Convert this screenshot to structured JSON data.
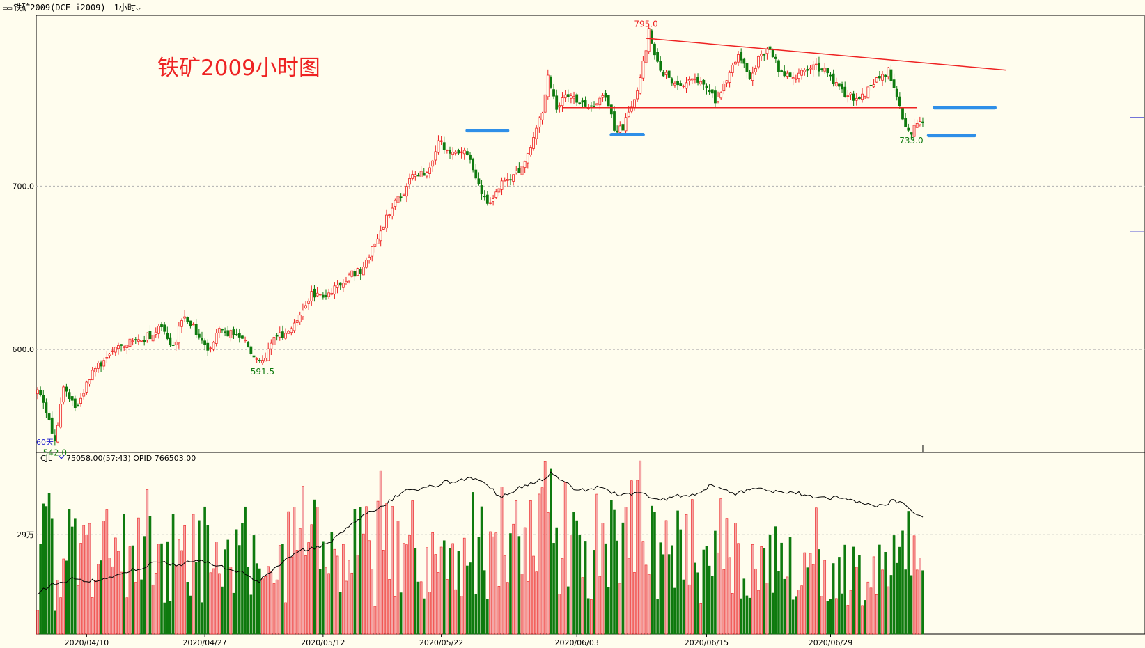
{
  "window": {
    "title": "铁矿2009(DCE i2009)",
    "period": "1小时",
    "icon": "chart-window-icon"
  },
  "annotation_title": "铁矿2009小时图",
  "indicator": {
    "name": "CJL",
    "reading": "75058.00(57:43)  OPID 766503.00"
  },
  "ma_tag": "60天",
  "colors": {
    "up": "#ee2222",
    "down": "#0e7a0e",
    "up_fill": "#fffdee",
    "annotation": "#ee2222",
    "blue": "#2f8fe8",
    "grid": "#b0b0b0",
    "background": "#fffdee"
  },
  "chart_data": [
    {
      "type": "candlestick",
      "title": "",
      "y_ticks": [
        600.0,
        700.0
      ],
      "y_tick_labels": [
        "600.0",
        "700.0"
      ],
      "ylim": [
        537,
        802
      ],
      "grid": "horizontal dashed",
      "x_labels": [
        "2020/04/10",
        "2020/04/27",
        "2020/05/12",
        "2020/05/22",
        "2020/06/03",
        "2020/06/15",
        "2020/06/29"
      ],
      "x_label_bars": [
        17,
        58,
        99,
        140,
        187,
        232,
        275
      ],
      "peak_path": [
        [
          0,
          577
        ],
        [
          3,
          560
        ],
        [
          6,
          546
        ],
        [
          9,
          575
        ],
        [
          13,
          564
        ],
        [
          18,
          583
        ],
        [
          24,
          596
        ],
        [
          30,
          603
        ],
        [
          37,
          607
        ],
        [
          43,
          613
        ],
        [
          47,
          602
        ],
        [
          51,
          622
        ],
        [
          55,
          610
        ],
        [
          59,
          598
        ],
        [
          63,
          612
        ],
        [
          68,
          609
        ],
        [
          72,
          604
        ],
        [
          75,
          597
        ],
        [
          78,
          593
        ],
        [
          82,
          606
        ],
        [
          86,
          610
        ],
        [
          91,
          622
        ],
        [
          95,
          635
        ],
        [
          100,
          630
        ],
        [
          104,
          640
        ],
        [
          108,
          645
        ],
        [
          113,
          649
        ],
        [
          117,
          665
        ],
        [
          121,
          681
        ],
        [
          126,
          694
        ],
        [
          130,
          707
        ],
        [
          135,
          707
        ],
        [
          139,
          728
        ],
        [
          143,
          720
        ],
        [
          148,
          722
        ],
        [
          152,
          707
        ],
        [
          156,
          688
        ],
        [
          160,
          699
        ],
        [
          164,
          706
        ],
        [
          168,
          710
        ],
        [
          172,
          728
        ],
        [
          175,
          747
        ],
        [
          177,
          768
        ],
        [
          180,
          748
        ],
        [
          183,
          757
        ],
        [
          188,
          752
        ],
        [
          193,
          748
        ],
        [
          197,
          755
        ],
        [
          200,
          735
        ],
        [
          203,
          736
        ],
        [
          207,
          753
        ],
        [
          210,
          775
        ],
        [
          212,
          795
        ],
        [
          215,
          774
        ],
        [
          219,
          766
        ],
        [
          223,
          760
        ],
        [
          227,
          768
        ],
        [
          231,
          763
        ],
        [
          235,
          752
        ],
        [
          239,
          767
        ],
        [
          243,
          781
        ],
        [
          247,
          768
        ],
        [
          251,
          780
        ],
        [
          254,
          783
        ],
        [
          258,
          768
        ],
        [
          262,
          766
        ],
        [
          266,
          771
        ],
        [
          270,
          773
        ],
        [
          274,
          770
        ],
        [
          279,
          758
        ],
        [
          283,
          754
        ],
        [
          287,
          757
        ],
        [
          291,
          764
        ],
        [
          295,
          770
        ],
        [
          297,
          762
        ],
        [
          299,
          748
        ],
        [
          301,
          737
        ],
        [
          303,
          733
        ],
        [
          305,
          737
        ],
        [
          307,
          739
        ]
      ],
      "annotations": [
        {
          "label": "795.0",
          "bar": 211,
          "price": 795,
          "position": "above",
          "color": "up"
        },
        {
          "label": "591.5",
          "bar": 78,
          "price": 591.5,
          "position": "below",
          "color": "down"
        },
        {
          "label": "542.0",
          "bar": 6,
          "price": 542,
          "position": "below",
          "color": "down"
        },
        {
          "label": "733.0",
          "bar": 303,
          "price": 733,
          "position": "below",
          "color": "down"
        }
      ],
      "lines": [
        {
          "from": [
            211,
            790.5
          ],
          "to": [
            336,
            771
          ],
          "color": "up"
        },
        {
          "from": [
            182,
            748
          ],
          "to": [
            305,
            748
          ],
          "color": "up"
        }
      ],
      "markers": [
        {
          "from": [
            149,
            734
          ],
          "to": [
            163,
            734
          ]
        },
        {
          "from": [
            199,
            731.5
          ],
          "to": [
            210,
            731.5
          ]
        },
        {
          "from": [
            309,
            731
          ],
          "to": [
            325,
            731
          ]
        },
        {
          "from": [
            311,
            748
          ],
          "to": [
            332,
            748
          ]
        }
      ],
      "right_ticks": [
        742,
        672
      ]
    },
    {
      "type": "bar+line",
      "title": "",
      "series": [
        {
          "name": "CJL",
          "kind": "bar"
        },
        {
          "name": "OPID",
          "kind": "line"
        }
      ],
      "y_ticks": [
        290000
      ],
      "y_tick_labels": [
        "29万"
      ],
      "ylim": [
        0,
        520000
      ],
      "vol_path": [
        [
          0,
          110000
        ],
        [
          3,
          360000
        ],
        [
          6,
          190000
        ],
        [
          9,
          320000
        ],
        [
          13,
          220000
        ],
        [
          18,
          300000
        ],
        [
          24,
          270000
        ],
        [
          30,
          240000
        ],
        [
          37,
          320000
        ],
        [
          43,
          210000
        ],
        [
          47,
          260000
        ],
        [
          51,
          230000
        ],
        [
          55,
          320000
        ],
        [
          59,
          200000
        ],
        [
          63,
          240000
        ],
        [
          68,
          240000
        ],
        [
          72,
          250000
        ],
        [
          75,
          320000
        ],
        [
          78,
          200000
        ],
        [
          82,
          230000
        ],
        [
          86,
          250000
        ],
        [
          91,
          280000
        ],
        [
          95,
          300000
        ],
        [
          100,
          240000
        ],
        [
          104,
          300000
        ],
        [
          108,
          250000
        ],
        [
          113,
          280000
        ],
        [
          117,
          230000
        ],
        [
          121,
          300000
        ],
        [
          126,
          250000
        ],
        [
          130,
          290000
        ],
        [
          135,
          270000
        ],
        [
          139,
          320000
        ],
        [
          143,
          300000
        ],
        [
          148,
          290000
        ],
        [
          152,
          270000
        ],
        [
          156,
          290000
        ],
        [
          160,
          240000
        ],
        [
          164,
          290000
        ],
        [
          168,
          300000
        ],
        [
          172,
          280000
        ],
        [
          175,
          330000
        ],
        [
          177,
          440000
        ],
        [
          180,
          300000
        ],
        [
          183,
          280000
        ],
        [
          188,
          280000
        ],
        [
          193,
          280000
        ],
        [
          197,
          320000
        ],
        [
          200,
          280000
        ],
        [
          203,
          250000
        ],
        [
          207,
          320000
        ],
        [
          210,
          420000
        ],
        [
          212,
          370000
        ],
        [
          215,
          240000
        ],
        [
          219,
          240000
        ],
        [
          223,
          270000
        ],
        [
          227,
          260000
        ],
        [
          231,
          250000
        ],
        [
          235,
          220000
        ],
        [
          239,
          260000
        ],
        [
          243,
          270000
        ],
        [
          247,
          250000
        ],
        [
          251,
          250000
        ],
        [
          254,
          230000
        ],
        [
          258,
          220000
        ],
        [
          262,
          230000
        ],
        [
          266,
          230000
        ],
        [
          270,
          210000
        ],
        [
          274,
          210000
        ],
        [
          279,
          200000
        ],
        [
          283,
          200000
        ],
        [
          287,
          210000
        ],
        [
          291,
          200000
        ],
        [
          295,
          200000
        ],
        [
          297,
          230000
        ],
        [
          299,
          370000
        ],
        [
          301,
          320000
        ],
        [
          303,
          260000
        ],
        [
          305,
          200000
        ],
        [
          307,
          180000
        ]
      ],
      "oi_path": [
        [
          0,
          120000
        ],
        [
          6,
          150000
        ],
        [
          12,
          160000
        ],
        [
          18,
          155000
        ],
        [
          24,
          165000
        ],
        [
          30,
          180000
        ],
        [
          36,
          195000
        ],
        [
          42,
          210000
        ],
        [
          48,
          200000
        ],
        [
          54,
          215000
        ],
        [
          60,
          205000
        ],
        [
          66,
          190000
        ],
        [
          72,
          180000
        ],
        [
          76,
          150000
        ],
        [
          80,
          175000
        ],
        [
          84,
          200000
        ],
        [
          88,
          230000
        ],
        [
          92,
          245000
        ],
        [
          96,
          250000
        ],
        [
          100,
          260000
        ],
        [
          104,
          285000
        ],
        [
          110,
          330000
        ],
        [
          116,
          360000
        ],
        [
          120,
          375000
        ],
        [
          124,
          400000
        ],
        [
          128,
          425000
        ],
        [
          132,
          420000
        ],
        [
          136,
          430000
        ],
        [
          140,
          440000
        ],
        [
          146,
          450000
        ],
        [
          150,
          455000
        ],
        [
          154,
          445000
        ],
        [
          158,
          420000
        ],
        [
          160,
          400000
        ],
        [
          164,
          410000
        ],
        [
          168,
          430000
        ],
        [
          172,
          440000
        ],
        [
          176,
          455000
        ],
        [
          178,
          470000
        ],
        [
          182,
          450000
        ],
        [
          186,
          425000
        ],
        [
          190,
          420000
        ],
        [
          194,
          430000
        ],
        [
          198,
          415000
        ],
        [
          202,
          405000
        ],
        [
          206,
          410000
        ],
        [
          210,
          410000
        ],
        [
          214,
          395000
        ],
        [
          218,
          395000
        ],
        [
          222,
          405000
        ],
        [
          226,
          400000
        ],
        [
          230,
          415000
        ],
        [
          234,
          440000
        ],
        [
          238,
          420000
        ],
        [
          242,
          410000
        ],
        [
          246,
          420000
        ],
        [
          250,
          430000
        ],
        [
          254,
          420000
        ],
        [
          258,
          410000
        ],
        [
          262,
          415000
        ],
        [
          266,
          405000
        ],
        [
          270,
          400000
        ],
        [
          274,
          395000
        ],
        [
          278,
          400000
        ],
        [
          282,
          390000
        ],
        [
          286,
          385000
        ],
        [
          290,
          375000
        ],
        [
          294,
          380000
        ],
        [
          297,
          390000
        ],
        [
          300,
          380000
        ],
        [
          303,
          360000
        ],
        [
          306,
          345000
        ]
      ]
    }
  ]
}
